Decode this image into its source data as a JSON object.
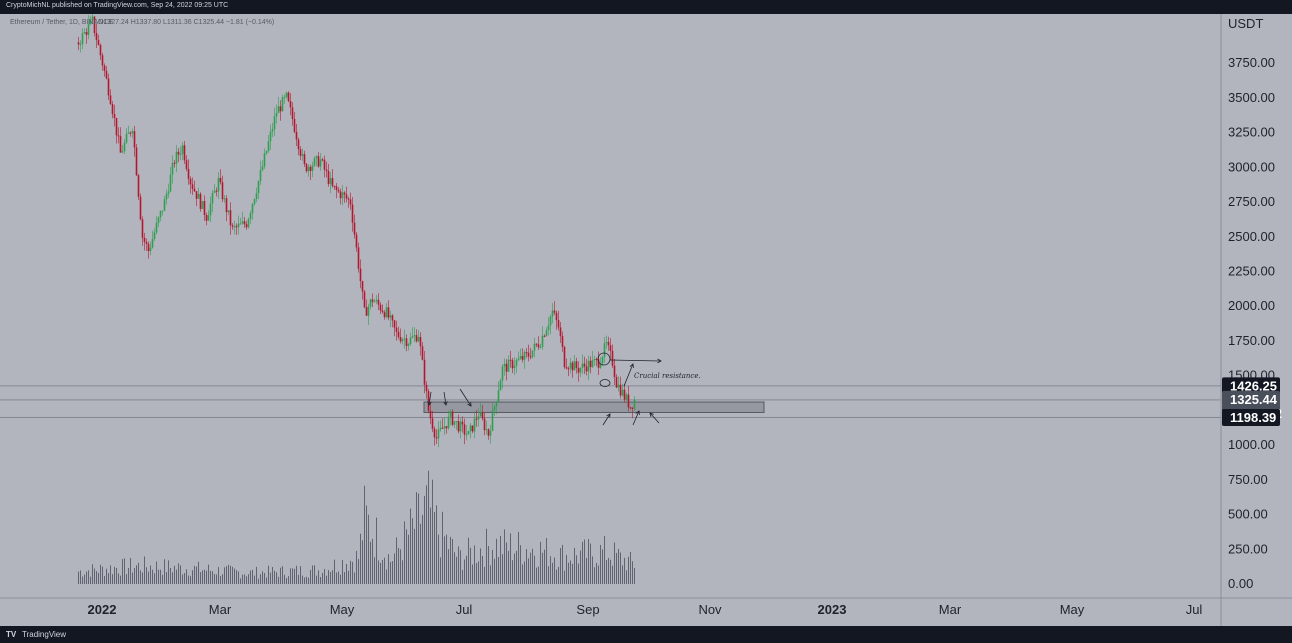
{
  "header": {
    "published_by": "CryptoMichNL published on TradingView.com, Sep 24, 2022 09:25 UTC"
  },
  "footer": {
    "logo_glyph": "TV",
    "brand": "TradingView"
  },
  "chart_data": {
    "type": "candlestick",
    "symbol_legend": "Ethereum / Tether, 1D, BINANCE",
    "ohlc_legend": "O1327.24 H1337.80 L1311.36 C1325.44 −1.81 (−0.14%)",
    "y_axis_label": "USDT",
    "y_ticks": [
      "3750.00",
      "3500.00",
      "3250.00",
      "3000.00",
      "2750.00",
      "2500.00",
      "2250.00",
      "2000.00",
      "1750.00",
      "1500.00",
      "1250.00",
      "1000.00",
      "750.00",
      "500.00",
      "250.00",
      "0.00"
    ],
    "x_ticks": [
      "2022",
      "Mar",
      "May",
      "Jul",
      "Sep",
      "Nov",
      "2023",
      "Mar",
      "May",
      "Jul"
    ],
    "bold_x_ticks": [
      "2022",
      "2023"
    ],
    "ylim": [
      0,
      3950
    ],
    "price_tags": [
      {
        "value": 1426.25,
        "label": "1426.25",
        "color": "#131722"
      },
      {
        "value": 1325.44,
        "label": "1325.44",
        "label2": "14:34:32",
        "color": "#4a4f5c"
      },
      {
        "value": 1198.39,
        "label": "1198.39",
        "color": "#131722"
      }
    ],
    "horizontal_lines": [
      1426.25,
      1325.44,
      1198.39
    ],
    "support_zone": {
      "from": 1235,
      "to": 1310,
      "start": "2022-06-11",
      "end": "2022-11-28"
    },
    "annotation": "Crucial resistance.",
    "colors": {
      "up": "#2e9e4f",
      "down": "#b5162e",
      "background": "#b2b5be",
      "volume": "#606470"
    },
    "price_path": [
      [
        "2021-12-20",
        3900
      ],
      [
        "2021-12-27",
        4050
      ],
      [
        "2022-01-01",
        3750
      ],
      [
        "2022-01-05",
        3500
      ],
      [
        "2022-01-10",
        3100
      ],
      [
        "2022-01-16",
        3300
      ],
      [
        "2022-01-21",
        2500
      ],
      [
        "2022-01-24",
        2400
      ],
      [
        "2022-02-01",
        2750
      ],
      [
        "2022-02-06",
        3050
      ],
      [
        "2022-02-10",
        3150
      ],
      [
        "2022-02-14",
        2900
      ],
      [
        "2022-02-22",
        2650
      ],
      [
        "2022-02-28",
        2900
      ],
      [
        "2022-03-07",
        2550
      ],
      [
        "2022-03-14",
        2600
      ],
      [
        "2022-03-21",
        2950
      ],
      [
        "2022-03-29",
        3400
      ],
      [
        "2022-04-03",
        3500
      ],
      [
        "2022-04-06",
        3350
      ],
      [
        "2022-04-12",
        3000
      ],
      [
        "2022-04-20",
        3050
      ],
      [
        "2022-04-26",
        2850
      ],
      [
        "2022-05-01",
        2800
      ],
      [
        "2022-05-05",
        2750
      ],
      [
        "2022-05-09",
        2300
      ],
      [
        "2022-05-12",
        1950
      ],
      [
        "2022-05-16",
        2050
      ],
      [
        "2022-05-23",
        1950
      ],
      [
        "2022-05-28",
        1800
      ],
      [
        "2022-06-03",
        1750
      ],
      [
        "2022-06-08",
        1800
      ],
      [
        "2022-06-13",
        1250
      ],
      [
        "2022-06-17",
        1050
      ],
      [
        "2022-06-20",
        1120
      ],
      [
        "2022-06-24",
        1200
      ],
      [
        "2022-06-28",
        1140
      ],
      [
        "2022-07-03",
        1070
      ],
      [
        "2022-07-08",
        1230
      ],
      [
        "2022-07-13",
        1080
      ],
      [
        "2022-07-17",
        1350
      ],
      [
        "2022-07-20",
        1550
      ],
      [
        "2022-07-27",
        1600
      ],
      [
        "2022-08-02",
        1650
      ],
      [
        "2022-08-08",
        1750
      ],
      [
        "2022-08-14",
        1960
      ],
      [
        "2022-08-17",
        1850
      ],
      [
        "2022-08-20",
        1600
      ],
      [
        "2022-08-27",
        1550
      ],
      [
        "2022-09-01",
        1580
      ],
      [
        "2022-09-06",
        1600
      ],
      [
        "2022-09-10",
        1720
      ],
      [
        "2022-09-13",
        1600
      ],
      [
        "2022-09-15",
        1450
      ],
      [
        "2022-09-19",
        1350
      ],
      [
        "2022-09-22",
        1280
      ],
      [
        "2022-09-24",
        1325.44
      ]
    ],
    "volume_path": [
      [
        "2021-12-20",
        90
      ],
      [
        "2022-01-10",
        120
      ],
      [
        "2022-01-21",
        130
      ],
      [
        "2022-02-15",
        110
      ],
      [
        "2022-03-15",
        80
      ],
      [
        "2022-04-20",
        100
      ],
      [
        "2022-05-09",
        190
      ],
      [
        "2022-05-12",
        480
      ],
      [
        "2022-05-25",
        170
      ],
      [
        "2022-06-13",
        560
      ],
      [
        "2022-06-18",
        380
      ],
      [
        "2022-06-28",
        190
      ],
      [
        "2022-07-15",
        280
      ],
      [
        "2022-08-05",
        250
      ],
      [
        "2022-08-20",
        200
      ],
      [
        "2022-09-10",
        230
      ],
      [
        "2022-09-24",
        140
      ]
    ]
  }
}
